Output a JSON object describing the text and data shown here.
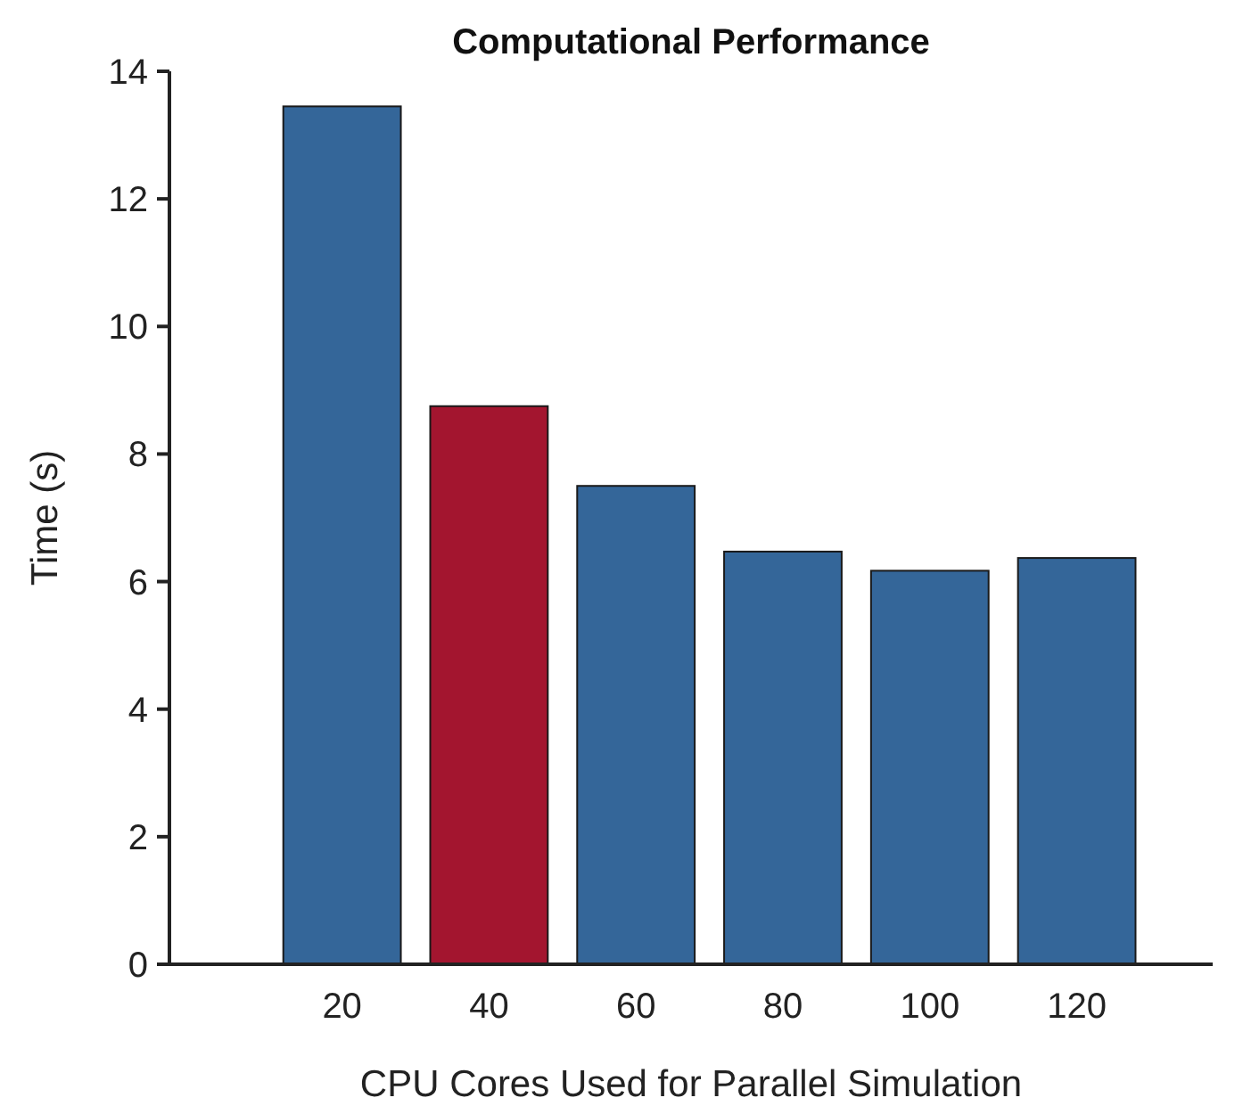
{
  "chart_data": {
    "type": "bar",
    "title": "Computational Performance",
    "xlabel": "CPU Cores Used for Parallel Simulation",
    "ylabel": "Time (s)",
    "x": [
      20,
      40,
      60,
      80,
      100,
      120
    ],
    "values": [
      13.45,
      8.75,
      7.5,
      6.47,
      6.17,
      6.37
    ],
    "colors": [
      "#346699",
      "#a3152f",
      "#346699",
      "#346699",
      "#346699",
      "#346699"
    ],
    "xlim": [
      -3.5,
      138.5
    ],
    "xticks": [
      20,
      40,
      60,
      80,
      100,
      120
    ],
    "ylim": [
      0,
      14
    ],
    "yticks": [
      0,
      2,
      4,
      6,
      8,
      10,
      12,
      14
    ],
    "grid": false
  }
}
